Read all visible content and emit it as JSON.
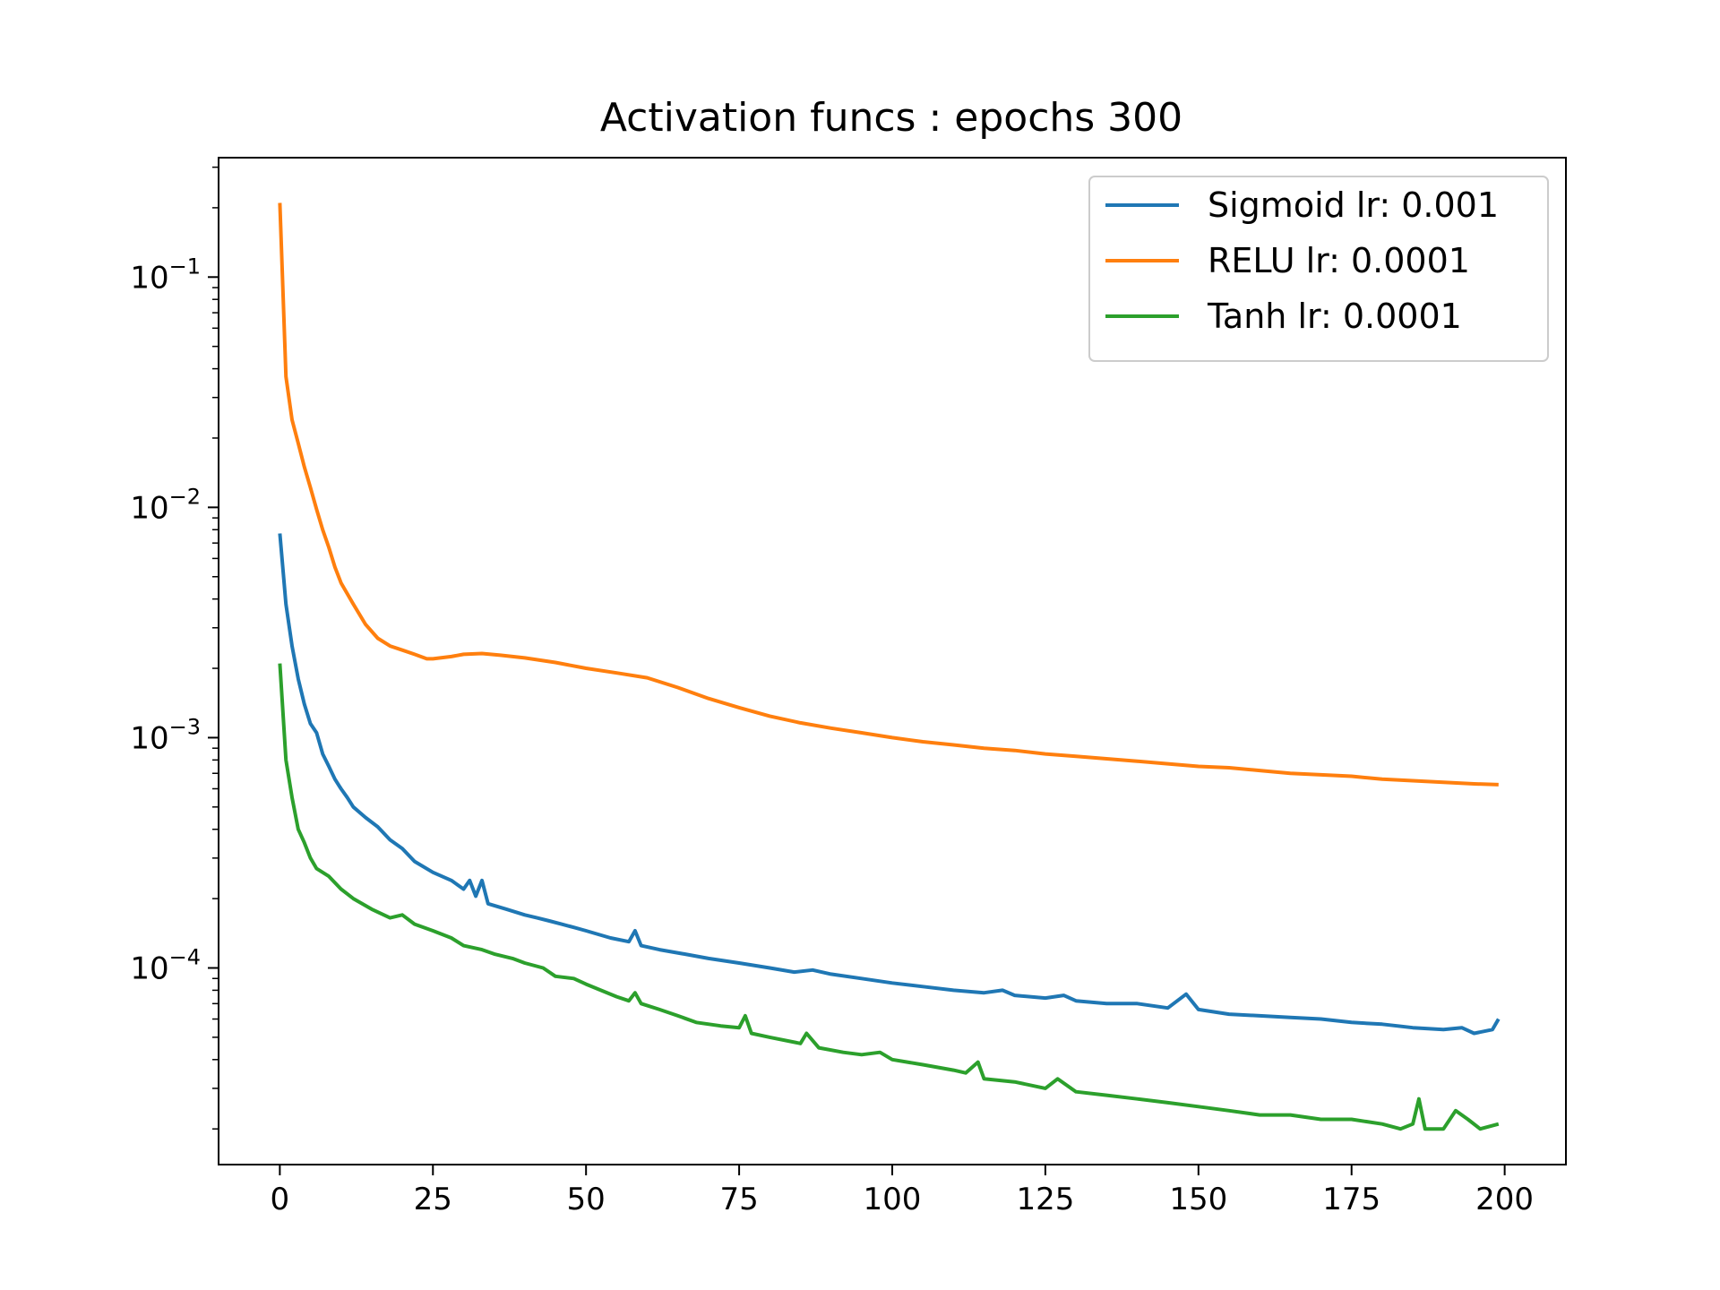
{
  "chart_data": {
    "type": "line",
    "title": "Activation funcs : epochs 300",
    "xlabel": "",
    "ylabel": "",
    "y_scale": "log",
    "xlim": [
      -10,
      210
    ],
    "ylim": [
      1.4e-05,
      0.33
    ],
    "x_ticks": [
      0,
      25,
      50,
      75,
      100,
      125,
      150,
      175,
      200
    ],
    "y_ticks": [
      {
        "value": 0.1,
        "base": "10",
        "exp": "−1"
      },
      {
        "value": 0.01,
        "base": "10",
        "exp": "−2"
      },
      {
        "value": 0.001,
        "base": "10",
        "exp": "−3"
      },
      {
        "value": 0.0001,
        "base": "10",
        "exp": "−4"
      }
    ],
    "grid": false,
    "legend_position": "top-right",
    "series": [
      {
        "name": "Sigmoid lr: 0.001",
        "color": "#1f77b4",
        "points": [
          [
            0,
            0.0077
          ],
          [
            1,
            0.0038
          ],
          [
            2,
            0.0025
          ],
          [
            3,
            0.0018
          ],
          [
            4,
            0.0014
          ],
          [
            5,
            0.00115
          ],
          [
            6,
            0.00105
          ],
          [
            7,
            0.00085
          ],
          [
            8,
            0.00075
          ],
          [
            9,
            0.00066
          ],
          [
            10,
            0.0006
          ],
          [
            11,
            0.00055
          ],
          [
            12,
            0.0005
          ],
          [
            14,
            0.00045
          ],
          [
            16,
            0.00041
          ],
          [
            18,
            0.00036
          ],
          [
            20,
            0.00033
          ],
          [
            22,
            0.00029
          ],
          [
            25,
            0.00026
          ],
          [
            28,
            0.00024
          ],
          [
            30,
            0.00022
          ],
          [
            31,
            0.00024
          ],
          [
            32,
            0.000205
          ],
          [
            33,
            0.00024
          ],
          [
            34,
            0.00019
          ],
          [
            37,
            0.00018
          ],
          [
            40,
            0.00017
          ],
          [
            42,
            0.000165
          ],
          [
            44,
            0.00016
          ],
          [
            46,
            0.000155
          ],
          [
            48,
            0.00015
          ],
          [
            50,
            0.000145
          ],
          [
            54,
            0.000135
          ],
          [
            57,
            0.00013
          ],
          [
            58,
            0.000145
          ],
          [
            59,
            0.000125
          ],
          [
            62,
            0.00012
          ],
          [
            66,
            0.000115
          ],
          [
            70,
            0.00011
          ],
          [
            75,
            0.000105
          ],
          [
            80,
            0.0001
          ],
          [
            84,
            9.6e-05
          ],
          [
            87,
            9.8e-05
          ],
          [
            90,
            9.4e-05
          ],
          [
            95,
            9e-05
          ],
          [
            100,
            8.6e-05
          ],
          [
            105,
            8.3e-05
          ],
          [
            110,
            8e-05
          ],
          [
            115,
            7.8e-05
          ],
          [
            118,
            8e-05
          ],
          [
            120,
            7.6e-05
          ],
          [
            125,
            7.4e-05
          ],
          [
            128,
            7.6e-05
          ],
          [
            130,
            7.2e-05
          ],
          [
            135,
            7e-05
          ],
          [
            140,
            7e-05
          ],
          [
            145,
            6.7e-05
          ],
          [
            148,
            7.7e-05
          ],
          [
            150,
            6.6e-05
          ],
          [
            155,
            6.3e-05
          ],
          [
            160,
            6.2e-05
          ],
          [
            165,
            6.1e-05
          ],
          [
            170,
            6e-05
          ],
          [
            175,
            5.8e-05
          ],
          [
            180,
            5.7e-05
          ],
          [
            185,
            5.5e-05
          ],
          [
            190,
            5.4e-05
          ],
          [
            193,
            5.5e-05
          ],
          [
            195,
            5.2e-05
          ],
          [
            198,
            5.4e-05
          ],
          [
            199,
            6e-05
          ]
        ]
      },
      {
        "name": "RELU lr: 0.0001",
        "color": "#ff7f0e",
        "points": [
          [
            0,
            0.21
          ],
          [
            1,
            0.037
          ],
          [
            2,
            0.024
          ],
          [
            3,
            0.019
          ],
          [
            4,
            0.015
          ],
          [
            5,
            0.0122
          ],
          [
            6,
            0.0098
          ],
          [
            7,
            0.008
          ],
          [
            8,
            0.0067
          ],
          [
            9,
            0.0055
          ],
          [
            10,
            0.0047
          ],
          [
            12,
            0.0038
          ],
          [
            14,
            0.0031
          ],
          [
            16,
            0.0027
          ],
          [
            18,
            0.0025
          ],
          [
            20,
            0.0024
          ],
          [
            22,
            0.0023
          ],
          [
            24,
            0.0022
          ],
          [
            25,
            0.0022
          ],
          [
            28,
            0.00225
          ],
          [
            30,
            0.0023
          ],
          [
            33,
            0.00232
          ],
          [
            36,
            0.00228
          ],
          [
            40,
            0.00222
          ],
          [
            45,
            0.00212
          ],
          [
            50,
            0.002
          ],
          [
            55,
            0.00191
          ],
          [
            60,
            0.00182
          ],
          [
            65,
            0.00165
          ],
          [
            70,
            0.00148
          ],
          [
            75,
            0.00135
          ],
          [
            80,
            0.00124
          ],
          [
            85,
            0.00116
          ],
          [
            90,
            0.0011
          ],
          [
            95,
            0.00105
          ],
          [
            100,
            0.001
          ],
          [
            105,
            0.00096
          ],
          [
            110,
            0.00093
          ],
          [
            115,
            0.0009
          ],
          [
            120,
            0.00088
          ],
          [
            125,
            0.00085
          ],
          [
            130,
            0.00083
          ],
          [
            135,
            0.00081
          ],
          [
            140,
            0.00079
          ],
          [
            145,
            0.00077
          ],
          [
            150,
            0.00075
          ],
          [
            155,
            0.00074
          ],
          [
            160,
            0.00072
          ],
          [
            165,
            0.0007
          ],
          [
            170,
            0.00069
          ],
          [
            175,
            0.00068
          ],
          [
            180,
            0.00066
          ],
          [
            185,
            0.00065
          ],
          [
            190,
            0.00064
          ],
          [
            195,
            0.00063
          ],
          [
            199,
            0.000625
          ]
        ]
      },
      {
        "name": "Tanh lr: 0.0001",
        "color": "#2ca02c",
        "points": [
          [
            0,
            0.0021
          ],
          [
            1,
            0.0008
          ],
          [
            2,
            0.00055
          ],
          [
            3,
            0.0004
          ],
          [
            4,
            0.00035
          ],
          [
            5,
            0.0003
          ],
          [
            6,
            0.00027
          ],
          [
            8,
            0.00025
          ],
          [
            10,
            0.00022
          ],
          [
            12,
            0.0002
          ],
          [
            15,
            0.00018
          ],
          [
            18,
            0.000165
          ],
          [
            20,
            0.00017
          ],
          [
            22,
            0.000155
          ],
          [
            25,
            0.000145
          ],
          [
            28,
            0.000135
          ],
          [
            30,
            0.000125
          ],
          [
            33,
            0.00012
          ],
          [
            35,
            0.000115
          ],
          [
            38,
            0.00011
          ],
          [
            40,
            0.000105
          ],
          [
            43,
            0.0001
          ],
          [
            45,
            9.2e-05
          ],
          [
            48,
            9e-05
          ],
          [
            50,
            8.5e-05
          ],
          [
            55,
            7.5e-05
          ],
          [
            57,
            7.2e-05
          ],
          [
            58,
            7.8e-05
          ],
          [
            59,
            7e-05
          ],
          [
            62,
            6.6e-05
          ],
          [
            65,
            6.2e-05
          ],
          [
            68,
            5.8e-05
          ],
          [
            72,
            5.6e-05
          ],
          [
            75,
            5.5e-05
          ],
          [
            76,
            6.2e-05
          ],
          [
            77,
            5.2e-05
          ],
          [
            80,
            5e-05
          ],
          [
            85,
            4.7e-05
          ],
          [
            86,
            5.2e-05
          ],
          [
            88,
            4.5e-05
          ],
          [
            92,
            4.3e-05
          ],
          [
            95,
            4.2e-05
          ],
          [
            98,
            4.3e-05
          ],
          [
            100,
            4e-05
          ],
          [
            105,
            3.8e-05
          ],
          [
            110,
            3.6e-05
          ],
          [
            112,
            3.5e-05
          ],
          [
            114,
            3.9e-05
          ],
          [
            115,
            3.3e-05
          ],
          [
            120,
            3.2e-05
          ],
          [
            125,
            3e-05
          ],
          [
            127,
            3.3e-05
          ],
          [
            130,
            2.9e-05
          ],
          [
            135,
            2.8e-05
          ],
          [
            140,
            2.7e-05
          ],
          [
            145,
            2.6e-05
          ],
          [
            150,
            2.5e-05
          ],
          [
            155,
            2.4e-05
          ],
          [
            160,
            2.3e-05
          ],
          [
            165,
            2.3e-05
          ],
          [
            170,
            2.2e-05
          ],
          [
            175,
            2.2e-05
          ],
          [
            180,
            2.1e-05
          ],
          [
            183,
            2e-05
          ],
          [
            185,
            2.1e-05
          ],
          [
            186,
            2.7e-05
          ],
          [
            187,
            2e-05
          ],
          [
            190,
            2e-05
          ],
          [
            192,
            2.4e-05
          ],
          [
            194,
            2.2e-05
          ],
          [
            196,
            2e-05
          ],
          [
            199,
            2.1e-05
          ]
        ]
      }
    ]
  }
}
